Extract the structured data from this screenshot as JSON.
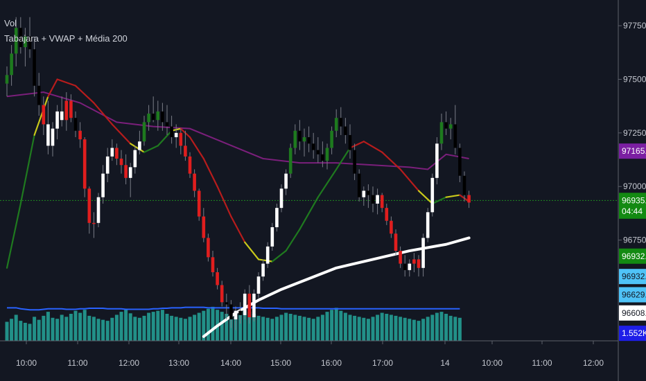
{
  "legend": {
    "volume_label": "Vol",
    "indicator_label": "Tabajara + VWAP + Média 200"
  },
  "chart_data": {
    "type": "candlestick",
    "y_axis": {
      "ticks": [
        97750.0,
        97500.0,
        97250.0,
        97000.0,
        96750.0
      ],
      "ylim": [
        96280,
        97870
      ]
    },
    "x_axis": {
      "tick_labels": [
        "10:00",
        "11:00",
        "12:00",
        "13:00",
        "14:00",
        "15:00",
        "16:00",
        "17:00",
        "14",
        "10:00",
        "11:00",
        "12:00"
      ]
    },
    "price_badges": [
      {
        "label": "97165.0",
        "value": 97165.0,
        "color": "#7b1fa2",
        "text_color": "#ffffff"
      },
      {
        "label": "96935.0",
        "value": 96935.0,
        "color": "#138a12",
        "text_color": "#ffffff"
      },
      {
        "label": "04:44",
        "value": 96885.0,
        "color": "#138a12",
        "text_color": "#ffffff"
      },
      {
        "label": "96932.0",
        "value": 96675.0,
        "color": "#138a12",
        "text_color": "#ffffff"
      },
      {
        "label": "96932.0",
        "value": 96580.0,
        "color": "#4fc3f7",
        "text_color": "#131722"
      },
      {
        "label": "96629.0",
        "value": 96495.0,
        "color": "#4fc3f7",
        "text_color": "#131722"
      },
      {
        "label": "96608.5",
        "value": 96410.0,
        "color": "#ffffff",
        "text_color": "#131722"
      },
      {
        "label": "1.552K",
        "value": 96315.0,
        "color": "#1e1ee8",
        "text_color": "#ffffff"
      }
    ],
    "horizontal_line": {
      "value": 96935.0,
      "color": "#1f8a1f",
      "style": "dotted"
    },
    "colors": {
      "candle_up": "#ffffff",
      "candle_down": "#e01e1e",
      "candle_neutral_up": "#1e7a1e",
      "candle_neutral_down": "#000000",
      "ma_200": "#7b1f7b",
      "tabajara_green": "#1f7a1f",
      "tabajara_red": "#b71c1c",
      "tabajara_yellow": "#c9c91a",
      "vwap": "#ffffff",
      "volume": "#26a69a",
      "volume_ma": "#2962ff"
    },
    "candles": [
      {
        "o": 97480,
        "h": 97560,
        "l": 97420,
        "c": 97520,
        "t": "g"
      },
      {
        "o": 97520,
        "h": 97660,
        "l": 97470,
        "c": 97620,
        "t": "g"
      },
      {
        "o": 97620,
        "h": 97790,
        "l": 97560,
        "c": 97740,
        "t": "g"
      },
      {
        "o": 97740,
        "h": 97790,
        "l": 97620,
        "c": 97650,
        "t": "k"
      },
      {
        "o": 97650,
        "h": 97740,
        "l": 97560,
        "c": 97700,
        "t": "g"
      },
      {
        "o": 97700,
        "h": 97790,
        "l": 97600,
        "c": 97640,
        "t": "k"
      },
      {
        "o": 97640,
        "h": 97700,
        "l": 97420,
        "c": 97470,
        "t": "k"
      },
      {
        "o": 97470,
        "h": 97530,
        "l": 97330,
        "c": 97380,
        "t": "k"
      },
      {
        "o": 97380,
        "h": 97420,
        "l": 97240,
        "c": 97290,
        "t": "r"
      },
      {
        "o": 97290,
        "h": 97400,
        "l": 97150,
        "c": 97190,
        "t": "w"
      },
      {
        "o": 97190,
        "h": 97300,
        "l": 97140,
        "c": 97270,
        "t": "w"
      },
      {
        "o": 97270,
        "h": 97380,
        "l": 97220,
        "c": 97350,
        "t": "w"
      },
      {
        "o": 97350,
        "h": 97420,
        "l": 97280,
        "c": 97310,
        "t": "w"
      },
      {
        "o": 97310,
        "h": 97440,
        "l": 97260,
        "c": 97400,
        "t": "r"
      },
      {
        "o": 97400,
        "h": 97430,
        "l": 97300,
        "c": 97320,
        "t": "r"
      },
      {
        "o": 97320,
        "h": 97350,
        "l": 97230,
        "c": 97260,
        "t": "k"
      },
      {
        "o": 97260,
        "h": 97300,
        "l": 97180,
        "c": 97220,
        "t": "r"
      },
      {
        "o": 97220,
        "h": 97230,
        "l": 96950,
        "c": 96990,
        "t": "r"
      },
      {
        "o": 96990,
        "h": 97000,
        "l": 96780,
        "c": 96830,
        "t": "r"
      },
      {
        "o": 96830,
        "h": 96880,
        "l": 96760,
        "c": 96830,
        "t": "r"
      },
      {
        "o": 96830,
        "h": 96970,
        "l": 96810,
        "c": 96950,
        "t": "w"
      },
      {
        "o": 96950,
        "h": 97100,
        "l": 96920,
        "c": 97060,
        "t": "w"
      },
      {
        "o": 97060,
        "h": 97180,
        "l": 97020,
        "c": 97140,
        "t": "w"
      },
      {
        "o": 97140,
        "h": 97220,
        "l": 97120,
        "c": 97180,
        "t": "w"
      },
      {
        "o": 97180,
        "h": 97200,
        "l": 97100,
        "c": 97130,
        "t": "r"
      },
      {
        "o": 97130,
        "h": 97170,
        "l": 97060,
        "c": 97100,
        "t": "r"
      },
      {
        "o": 97100,
        "h": 97150,
        "l": 97010,
        "c": 97040,
        "t": "r"
      },
      {
        "o": 97040,
        "h": 97110,
        "l": 96950,
        "c": 97090,
        "t": "w"
      },
      {
        "o": 97090,
        "h": 97190,
        "l": 97060,
        "c": 97170,
        "t": "w"
      },
      {
        "o": 97170,
        "h": 97260,
        "l": 97150,
        "c": 97210,
        "t": "w"
      },
      {
        "o": 97210,
        "h": 97330,
        "l": 97190,
        "c": 97300,
        "t": "g"
      },
      {
        "o": 97300,
        "h": 97380,
        "l": 97260,
        "c": 97340,
        "t": "g"
      },
      {
        "o": 97340,
        "h": 97420,
        "l": 97300,
        "c": 97310,
        "t": "k"
      },
      {
        "o": 97310,
        "h": 97400,
        "l": 97260,
        "c": 97350,
        "t": "g"
      },
      {
        "o": 97350,
        "h": 97390,
        "l": 97260,
        "c": 97300,
        "t": "k"
      },
      {
        "o": 97300,
        "h": 97380,
        "l": 97240,
        "c": 97280,
        "t": "k"
      },
      {
        "o": 97280,
        "h": 97330,
        "l": 97200,
        "c": 97230,
        "t": "k"
      },
      {
        "o": 97230,
        "h": 97290,
        "l": 97180,
        "c": 97250,
        "t": "w"
      },
      {
        "o": 97250,
        "h": 97270,
        "l": 97150,
        "c": 97190,
        "t": "r"
      },
      {
        "o": 97190,
        "h": 97260,
        "l": 97120,
        "c": 97140,
        "t": "r"
      },
      {
        "o": 97140,
        "h": 97160,
        "l": 97040,
        "c": 97060,
        "t": "r"
      },
      {
        "o": 97060,
        "h": 97080,
        "l": 96950,
        "c": 96980,
        "t": "r"
      },
      {
        "o": 96980,
        "h": 96990,
        "l": 96840,
        "c": 96860,
        "t": "r"
      },
      {
        "o": 96860,
        "h": 96900,
        "l": 96740,
        "c": 96760,
        "t": "r"
      },
      {
        "o": 96760,
        "h": 96780,
        "l": 96650,
        "c": 96670,
        "t": "r"
      },
      {
        "o": 96670,
        "h": 96700,
        "l": 96580,
        "c": 96600,
        "t": "r"
      },
      {
        "o": 96600,
        "h": 96620,
        "l": 96520,
        "c": 96540,
        "t": "r"
      },
      {
        "o": 96540,
        "h": 96560,
        "l": 96440,
        "c": 96460,
        "t": "r"
      },
      {
        "o": 96460,
        "h": 96500,
        "l": 96380,
        "c": 96450,
        "t": "k"
      },
      {
        "o": 96450,
        "h": 96470,
        "l": 96340,
        "c": 96380,
        "t": "k"
      },
      {
        "o": 96380,
        "h": 96440,
        "l": 96330,
        "c": 96420,
        "t": "w"
      },
      {
        "o": 96420,
        "h": 96460,
        "l": 96360,
        "c": 96400,
        "t": "k"
      },
      {
        "o": 96400,
        "h": 96520,
        "l": 96380,
        "c": 96500,
        "t": "w"
      },
      {
        "o": 96500,
        "h": 96540,
        "l": 96360,
        "c": 96390,
        "t": "r"
      },
      {
        "o": 96390,
        "h": 96520,
        "l": 96370,
        "c": 96500,
        "t": "w"
      },
      {
        "o": 96500,
        "h": 96600,
        "l": 96480,
        "c": 96580,
        "t": "w"
      },
      {
        "o": 96580,
        "h": 96660,
        "l": 96560,
        "c": 96640,
        "t": "w"
      },
      {
        "o": 96640,
        "h": 96740,
        "l": 96620,
        "c": 96720,
        "t": "w"
      },
      {
        "o": 96720,
        "h": 96830,
        "l": 96700,
        "c": 96810,
        "t": "w"
      },
      {
        "o": 96810,
        "h": 96920,
        "l": 96790,
        "c": 96900,
        "t": "w"
      },
      {
        "o": 96900,
        "h": 97010,
        "l": 96880,
        "c": 96990,
        "t": "w"
      },
      {
        "o": 96990,
        "h": 97080,
        "l": 96960,
        "c": 97060,
        "t": "w"
      },
      {
        "o": 97060,
        "h": 97200,
        "l": 97040,
        "c": 97180,
        "t": "g"
      },
      {
        "o": 97180,
        "h": 97290,
        "l": 97150,
        "c": 97260,
        "t": "g"
      },
      {
        "o": 97260,
        "h": 97310,
        "l": 97170,
        "c": 97210,
        "t": "k"
      },
      {
        "o": 97210,
        "h": 97270,
        "l": 97140,
        "c": 97230,
        "t": "g"
      },
      {
        "o": 97230,
        "h": 97280,
        "l": 97160,
        "c": 97200,
        "t": "k"
      },
      {
        "o": 97200,
        "h": 97250,
        "l": 97130,
        "c": 97170,
        "t": "k"
      },
      {
        "o": 97170,
        "h": 97230,
        "l": 97110,
        "c": 97150,
        "t": "k"
      },
      {
        "o": 97150,
        "h": 97210,
        "l": 97090,
        "c": 97120,
        "t": "k"
      },
      {
        "o": 97120,
        "h": 97200,
        "l": 97080,
        "c": 97180,
        "t": "g"
      },
      {
        "o": 97180,
        "h": 97280,
        "l": 97150,
        "c": 97260,
        "t": "g"
      },
      {
        "o": 97260,
        "h": 97360,
        "l": 97230,
        "c": 97320,
        "t": "g"
      },
      {
        "o": 97320,
        "h": 97370,
        "l": 97240,
        "c": 97280,
        "t": "k"
      },
      {
        "o": 97280,
        "h": 97320,
        "l": 97200,
        "c": 97240,
        "t": "k"
      },
      {
        "o": 97240,
        "h": 97290,
        "l": 97130,
        "c": 97170,
        "t": "k"
      },
      {
        "o": 97170,
        "h": 97200,
        "l": 97030,
        "c": 97060,
        "t": "k"
      },
      {
        "o": 97060,
        "h": 97080,
        "l": 96930,
        "c": 96950,
        "t": "k"
      },
      {
        "o": 96950,
        "h": 97000,
        "l": 96910,
        "c": 96980,
        "t": "w"
      },
      {
        "o": 96980,
        "h": 97010,
        "l": 96900,
        "c": 96960,
        "t": "k"
      },
      {
        "o": 96960,
        "h": 97000,
        "l": 96880,
        "c": 96920,
        "t": "k"
      },
      {
        "o": 96920,
        "h": 96990,
        "l": 96870,
        "c": 96960,
        "t": "w"
      },
      {
        "o": 96960,
        "h": 96970,
        "l": 96880,
        "c": 96900,
        "t": "r"
      },
      {
        "o": 96900,
        "h": 96920,
        "l": 96820,
        "c": 96840,
        "t": "r"
      },
      {
        "o": 96840,
        "h": 96860,
        "l": 96760,
        "c": 96780,
        "t": "r"
      },
      {
        "o": 96780,
        "h": 96800,
        "l": 96680,
        "c": 96700,
        "t": "r"
      },
      {
        "o": 96700,
        "h": 96720,
        "l": 96620,
        "c": 96640,
        "t": "r"
      },
      {
        "o": 96640,
        "h": 96680,
        "l": 96580,
        "c": 96610,
        "t": "k"
      },
      {
        "o": 96610,
        "h": 96660,
        "l": 96580,
        "c": 96640,
        "t": "w"
      },
      {
        "o": 96640,
        "h": 96690,
        "l": 96600,
        "c": 96660,
        "t": "r"
      },
      {
        "o": 96660,
        "h": 96680,
        "l": 96580,
        "c": 96620,
        "t": "r"
      },
      {
        "o": 96620,
        "h": 96780,
        "l": 96580,
        "c": 96760,
        "t": "w"
      },
      {
        "o": 96760,
        "h": 96900,
        "l": 96740,
        "c": 96880,
        "t": "w"
      },
      {
        "o": 96880,
        "h": 97060,
        "l": 96860,
        "c": 97040,
        "t": "w"
      },
      {
        "o": 97040,
        "h": 97230,
        "l": 97010,
        "c": 97200,
        "t": "w"
      },
      {
        "o": 97200,
        "h": 97340,
        "l": 97170,
        "c": 97300,
        "t": "g"
      },
      {
        "o": 97300,
        "h": 97350,
        "l": 97240,
        "c": 97270,
        "t": "k"
      },
      {
        "o": 97270,
        "h": 97320,
        "l": 97220,
        "c": 97290,
        "t": "g"
      },
      {
        "o": 97290,
        "h": 97380,
        "l": 97150,
        "c": 97180,
        "t": "k"
      },
      {
        "o": 97180,
        "h": 97200,
        "l": 97020,
        "c": 97050,
        "t": "k"
      },
      {
        "o": 97050,
        "h": 97070,
        "l": 96930,
        "c": 96960,
        "t": "k"
      },
      {
        "o": 96960,
        "h": 96980,
        "l": 96900,
        "c": 96925,
        "t": "r"
      }
    ],
    "volume": [
      38,
      44,
      52,
      40,
      36,
      34,
      48,
      42,
      50,
      58,
      46,
      44,
      52,
      48,
      54,
      60,
      56,
      62,
      50,
      48,
      44,
      42,
      40,
      46,
      52,
      58,
      62,
      55,
      48,
      46,
      50,
      56,
      58,
      60,
      62,
      54,
      50,
      48,
      46,
      44,
      48,
      52,
      56,
      60,
      64,
      68,
      62,
      58,
      54,
      50,
      56,
      60,
      62,
      58,
      54,
      50,
      48,
      46,
      44,
      48,
      52,
      56,
      54,
      52,
      50,
      48,
      46,
      44,
      48,
      52,
      58,
      62,
      66,
      60,
      56,
      52,
      50,
      48,
      46,
      44,
      48,
      52,
      56,
      54,
      52,
      50,
      48,
      46,
      44,
      42,
      40,
      44,
      48,
      52,
      56,
      58,
      54,
      50,
      48,
      46
    ],
    "volume_ma": [
      66,
      66,
      66,
      64,
      63,
      62,
      62,
      62,
      63,
      64,
      64,
      64,
      64,
      63,
      63,
      63,
      64,
      64,
      65,
      65,
      65,
      65,
      64,
      64,
      64,
      64,
      63,
      63,
      63,
      63,
      63,
      63,
      64,
      64,
      65,
      65,
      66,
      66,
      66,
      67,
      67,
      67,
      67,
      67,
      66,
      66,
      66,
      66,
      66,
      66,
      66,
      66,
      66,
      66,
      66,
      66,
      65,
      65,
      65,
      65,
      64,
      64,
      64,
      64,
      64,
      64,
      64,
      64,
      64,
      64,
      64,
      64,
      64,
      64,
      64,
      64,
      64,
      64,
      64,
      64,
      64,
      64,
      64,
      64,
      64,
      64,
      64,
      64,
      64,
      64,
      64,
      64,
      64,
      64,
      64,
      64,
      64,
      64,
      64,
      64
    ],
    "vwap": [
      {
        "i": 43,
        "v": 96300
      },
      {
        "i": 46,
        "v": 96350
      },
      {
        "i": 50,
        "v": 96410
      },
      {
        "i": 55,
        "v": 96470
      },
      {
        "i": 60,
        "v": 96520
      },
      {
        "i": 66,
        "v": 96570
      },
      {
        "i": 72,
        "v": 96620
      },
      {
        "i": 80,
        "v": 96660
      },
      {
        "i": 88,
        "v": 96700
      },
      {
        "i": 96,
        "v": 96730
      },
      {
        "i": 101,
        "v": 96760
      }
    ],
    "ma_200": [
      {
        "i": 0,
        "v": 97420
      },
      {
        "i": 8,
        "v": 97440
      },
      {
        "i": 16,
        "v": 97390
      },
      {
        "i": 24,
        "v": 97300
      },
      {
        "i": 32,
        "v": 97280
      },
      {
        "i": 40,
        "v": 97270
      },
      {
        "i": 48,
        "v": 97200
      },
      {
        "i": 56,
        "v": 97130
      },
      {
        "i": 64,
        "v": 97110
      },
      {
        "i": 72,
        "v": 97110
      },
      {
        "i": 80,
        "v": 97100
      },
      {
        "i": 88,
        "v": 97090
      },
      {
        "i": 92,
        "v": 97080
      },
      {
        "i": 96,
        "v": 97150
      },
      {
        "i": 101,
        "v": 97130
      }
    ],
    "tabajara": [
      {
        "i": 0,
        "v": 96620,
        "c": "g"
      },
      {
        "i": 3,
        "v": 96920,
        "c": "g"
      },
      {
        "i": 6,
        "v": 97240,
        "c": "g"
      },
      {
        "i": 9,
        "v": 97420,
        "c": "y"
      },
      {
        "i": 11,
        "v": 97500,
        "c": "r"
      },
      {
        "i": 15,
        "v": 97470,
        "c": "r"
      },
      {
        "i": 19,
        "v": 97390,
        "c": "r"
      },
      {
        "i": 23,
        "v": 97290,
        "c": "r"
      },
      {
        "i": 27,
        "v": 97200,
        "c": "r"
      },
      {
        "i": 30,
        "v": 97160,
        "c": "y"
      },
      {
        "i": 33,
        "v": 97190,
        "c": "g"
      },
      {
        "i": 36,
        "v": 97260,
        "c": "g"
      },
      {
        "i": 38,
        "v": 97270,
        "c": "y"
      },
      {
        "i": 40,
        "v": 97230,
        "c": "r"
      },
      {
        "i": 43,
        "v": 97130,
        "c": "r"
      },
      {
        "i": 46,
        "v": 97000,
        "c": "r"
      },
      {
        "i": 49,
        "v": 96860,
        "c": "r"
      },
      {
        "i": 52,
        "v": 96740,
        "c": "r"
      },
      {
        "i": 55,
        "v": 96660,
        "c": "y"
      },
      {
        "i": 58,
        "v": 96650,
        "c": "y"
      },
      {
        "i": 61,
        "v": 96700,
        "c": "g"
      },
      {
        "i": 64,
        "v": 96800,
        "c": "g"
      },
      {
        "i": 68,
        "v": 96950,
        "c": "g"
      },
      {
        "i": 72,
        "v": 97080,
        "c": "g"
      },
      {
        "i": 75,
        "v": 97180,
        "c": "g"
      },
      {
        "i": 78,
        "v": 97210,
        "c": "r"
      },
      {
        "i": 82,
        "v": 97160,
        "c": "r"
      },
      {
        "i": 86,
        "v": 97080,
        "c": "r"
      },
      {
        "i": 90,
        "v": 96980,
        "c": "r"
      },
      {
        "i": 93,
        "v": 96920,
        "c": "y"
      },
      {
        "i": 96,
        "v": 96950,
        "c": "g"
      },
      {
        "i": 99,
        "v": 96960,
        "c": "y"
      },
      {
        "i": 101,
        "v": 96930,
        "c": "r"
      }
    ]
  }
}
